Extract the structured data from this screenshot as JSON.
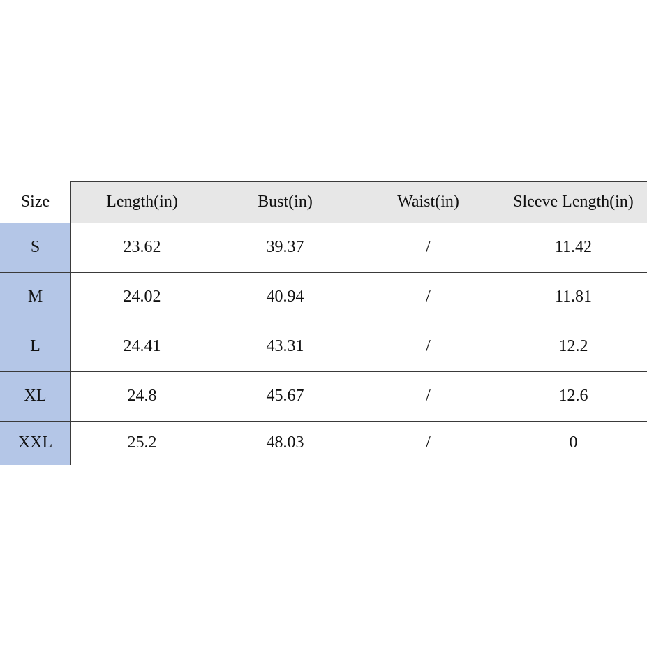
{
  "table": {
    "header": [
      "Size",
      "Length(in)",
      "Bust(in)",
      "Waist(in)",
      "Sleeve Length(in)"
    ],
    "rows": [
      [
        "S",
        "23.62",
        "39.37",
        "/",
        "11.42"
      ],
      [
        "M",
        "24.02",
        "40.94",
        "/",
        "11.81"
      ],
      [
        "L",
        "24.41",
        "43.31",
        "/",
        "12.2"
      ],
      [
        "XL",
        "24.8",
        "45.67",
        "/",
        "12.6"
      ],
      [
        "XXL",
        "25.2",
        "48.03",
        "/",
        "0"
      ]
    ]
  }
}
